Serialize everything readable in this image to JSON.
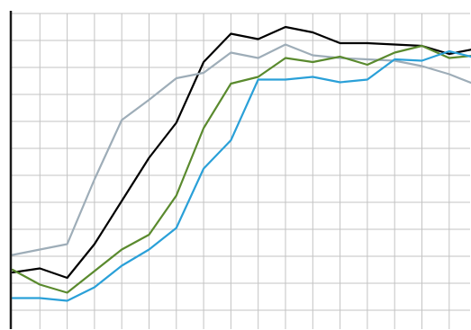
{
  "chart_data": {
    "type": "line",
    "title": "",
    "xlabel": "",
    "ylabel": "",
    "grid": true,
    "xlim": [
      0,
      17
    ],
    "ylim": [
      0,
      12
    ],
    "x": [
      0,
      1,
      2,
      3,
      4,
      5,
      6,
      7,
      8,
      9,
      10,
      11,
      12,
      13,
      14,
      15,
      16,
      17
    ],
    "series": [
      {
        "color": "#000000",
        "values": [
          1.4,
          1.55,
          1.2,
          2.45,
          4.05,
          5.65,
          6.95,
          9.2,
          10.25,
          10.05,
          10.5,
          10.3,
          9.9,
          9.9,
          9.85,
          9.8,
          9.5,
          9.7
        ]
      },
      {
        "color": "#9eadb8",
        "values": [
          2.05,
          2.25,
          2.45,
          4.85,
          7.05,
          7.8,
          8.6,
          8.8,
          9.55,
          9.35,
          9.85,
          9.45,
          9.35,
          9.3,
          9.25,
          9.05,
          8.75,
          8.35
        ]
      },
      {
        "color": "#5a8a2e",
        "values": [
          1.5,
          0.95,
          0.65,
          1.45,
          2.25,
          2.8,
          4.25,
          6.75,
          8.4,
          8.65,
          9.35,
          9.2,
          9.4,
          9.1,
          9.55,
          9.8,
          9.35,
          9.45
        ]
      },
      {
        "color": "#2aa0d8",
        "values": [
          0.45,
          0.45,
          0.35,
          0.85,
          1.65,
          2.25,
          3.05,
          5.25,
          6.3,
          8.55,
          8.55,
          8.65,
          8.45,
          8.55,
          9.3,
          9.25,
          9.6,
          9.35
        ]
      }
    ]
  }
}
